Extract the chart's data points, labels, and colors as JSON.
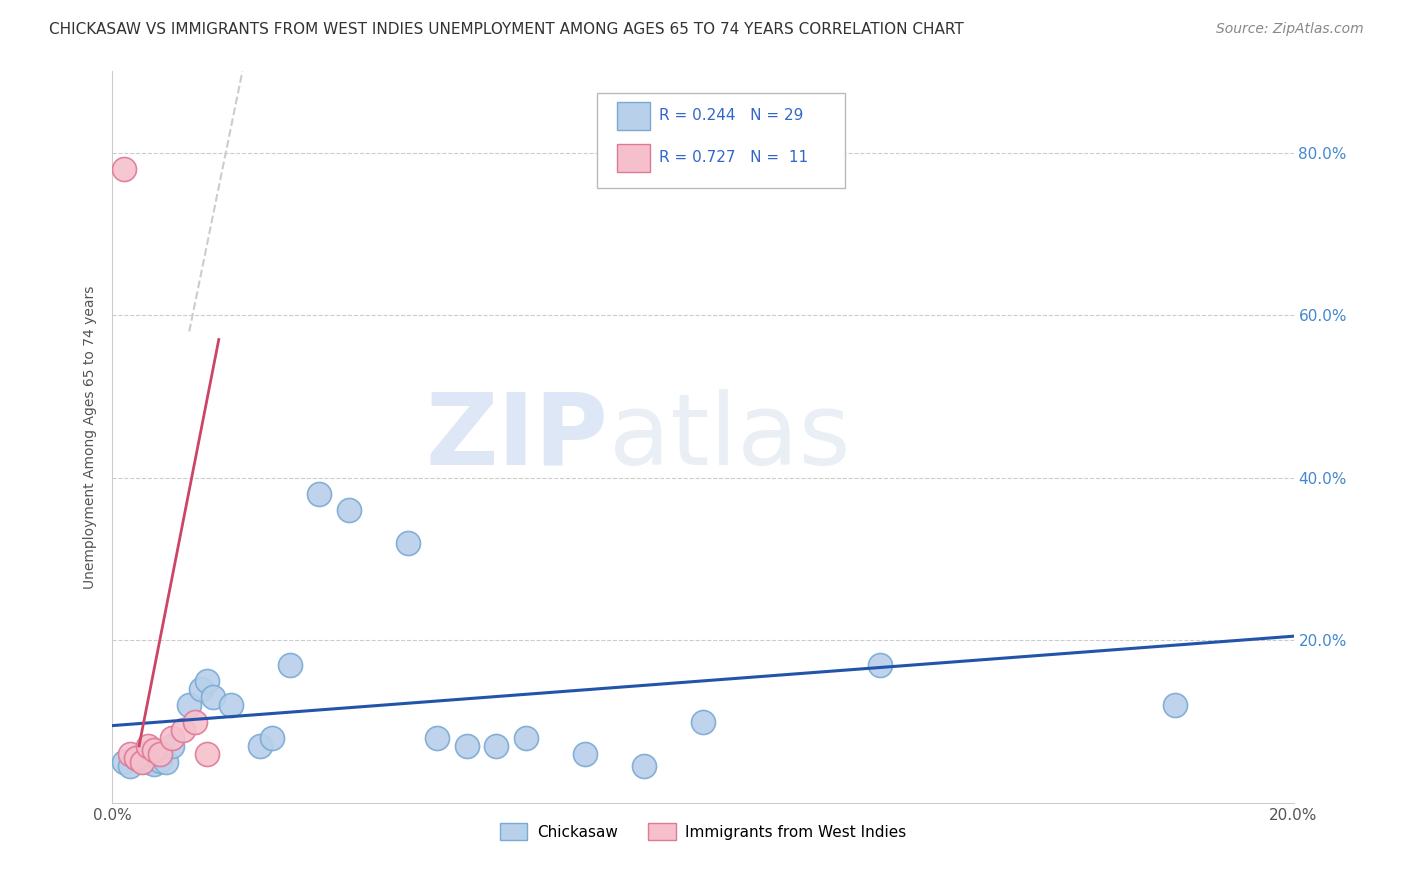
{
  "title": "CHICKASAW VS IMMIGRANTS FROM WEST INDIES UNEMPLOYMENT AMONG AGES 65 TO 74 YEARS CORRELATION CHART",
  "source": "Source: ZipAtlas.com",
  "ylabel": "Unemployment Among Ages 65 to 74 years",
  "xlim": [
    0.0,
    0.2
  ],
  "ylim": [
    0.0,
    0.9
  ],
  "ytick_labels": [
    "20.0%",
    "40.0%",
    "60.0%",
    "80.0%"
  ],
  "ytick_positions": [
    0.2,
    0.4,
    0.6,
    0.8
  ],
  "watermark_zip": "ZIP",
  "watermark_atlas": "atlas",
  "chickasaw_scatter": [
    [
      0.002,
      0.05
    ],
    [
      0.003,
      0.045
    ],
    [
      0.004,
      0.055
    ],
    [
      0.005,
      0.06
    ],
    [
      0.006,
      0.05
    ],
    [
      0.007,
      0.048
    ],
    [
      0.008,
      0.052
    ],
    [
      0.009,
      0.05
    ],
    [
      0.01,
      0.07
    ],
    [
      0.013,
      0.12
    ],
    [
      0.015,
      0.14
    ],
    [
      0.016,
      0.15
    ],
    [
      0.017,
      0.13
    ],
    [
      0.02,
      0.12
    ],
    [
      0.025,
      0.07
    ],
    [
      0.027,
      0.08
    ],
    [
      0.03,
      0.17
    ],
    [
      0.035,
      0.38
    ],
    [
      0.04,
      0.36
    ],
    [
      0.05,
      0.32
    ],
    [
      0.055,
      0.08
    ],
    [
      0.06,
      0.07
    ],
    [
      0.065,
      0.07
    ],
    [
      0.07,
      0.08
    ],
    [
      0.08,
      0.06
    ],
    [
      0.09,
      0.045
    ],
    [
      0.1,
      0.1
    ],
    [
      0.13,
      0.17
    ],
    [
      0.18,
      0.12
    ]
  ],
  "westindies_scatter": [
    [
      0.002,
      0.78
    ],
    [
      0.003,
      0.06
    ],
    [
      0.004,
      0.055
    ],
    [
      0.005,
      0.05
    ],
    [
      0.006,
      0.07
    ],
    [
      0.007,
      0.065
    ],
    [
      0.008,
      0.06
    ],
    [
      0.01,
      0.08
    ],
    [
      0.012,
      0.09
    ],
    [
      0.014,
      0.1
    ],
    [
      0.016,
      0.06
    ]
  ],
  "blue_fill": "#b8d0ea",
  "blue_edge": "#7aaad4",
  "pink_fill": "#f5c0cc",
  "pink_edge": "#e07898",
  "blue_line_color": "#2255aa",
  "pink_line_color": "#cc4466",
  "dashed_line_color": "#cccccc",
  "background_color": "#ffffff",
  "grid_color": "#cccccc",
  "title_fontsize": 11,
  "axis_label_fontsize": 10,
  "tick_fontsize": 11,
  "legend_fontsize": 11,
  "source_fontsize": 10
}
